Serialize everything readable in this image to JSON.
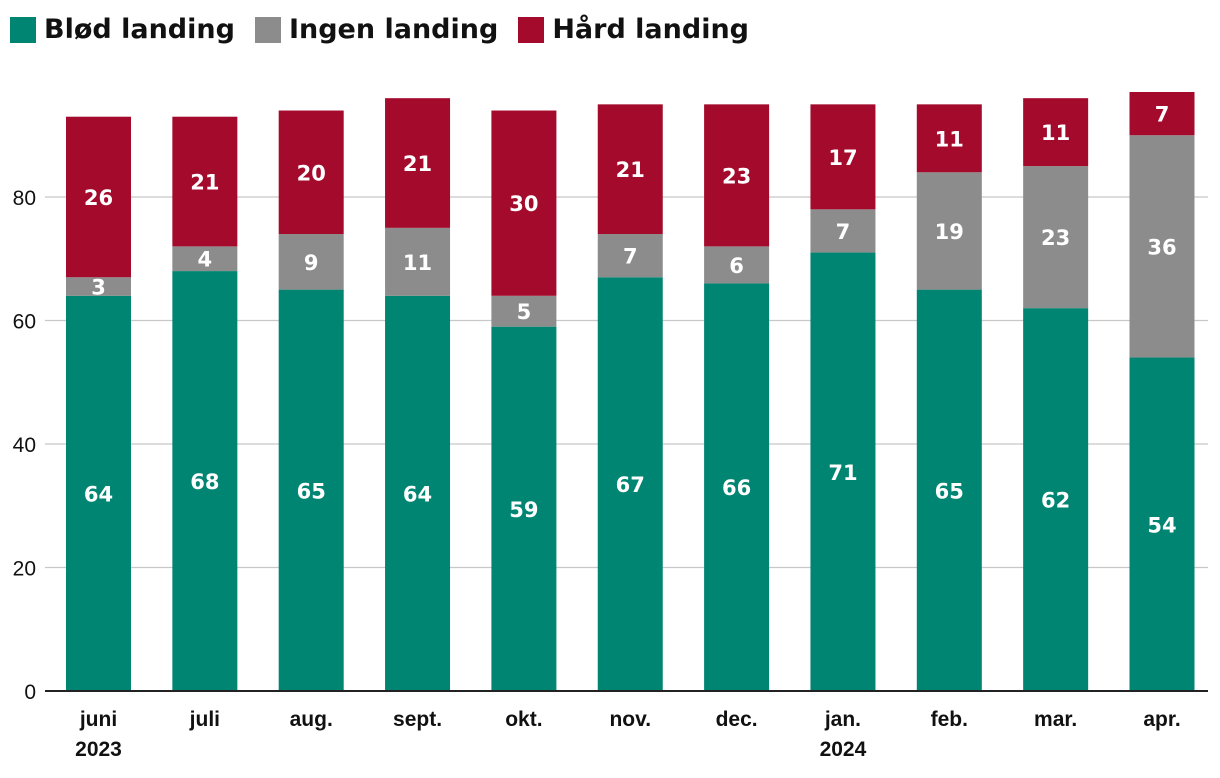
{
  "colors": {
    "blod": "#008572",
    "ingen": "#8c8c8c",
    "hard": "#a40a2c",
    "grid": "#c8c8c8",
    "axis": "#222222"
  },
  "legend": [
    {
      "label": "Blød landing",
      "color": "#008572"
    },
    {
      "label": "Ingen landing",
      "color": "#8c8c8c"
    },
    {
      "label": "Hård landing",
      "color": "#a40a2c"
    }
  ],
  "chart_data": {
    "type": "bar",
    "stacked": true,
    "title": "",
    "xlabel": "",
    "ylabel": "",
    "ylim": [
      0,
      97
    ],
    "yticks": [
      0,
      20,
      40,
      60,
      80
    ],
    "grid": true,
    "legend_position": "top-left",
    "categories": [
      [
        "juni",
        "2023"
      ],
      [
        "juli"
      ],
      [
        "aug."
      ],
      [
        "sept."
      ],
      [
        "okt."
      ],
      [
        "nov."
      ],
      [
        "dec."
      ],
      [
        "jan.",
        "2024"
      ],
      [
        "feb."
      ],
      [
        "mar."
      ],
      [
        "apr."
      ]
    ],
    "series": [
      {
        "name": "Blød landing",
        "color": "#008572",
        "values": [
          64,
          68,
          65,
          64,
          59,
          67,
          66,
          71,
          65,
          62,
          54
        ]
      },
      {
        "name": "Ingen landing",
        "color": "#8c8c8c",
        "values": [
          3,
          4,
          9,
          11,
          5,
          7,
          6,
          7,
          19,
          23,
          36
        ]
      },
      {
        "name": "Hård landing",
        "color": "#a40a2c",
        "values": [
          26,
          21,
          20,
          21,
          30,
          21,
          23,
          17,
          11,
          11,
          7
        ]
      }
    ]
  }
}
